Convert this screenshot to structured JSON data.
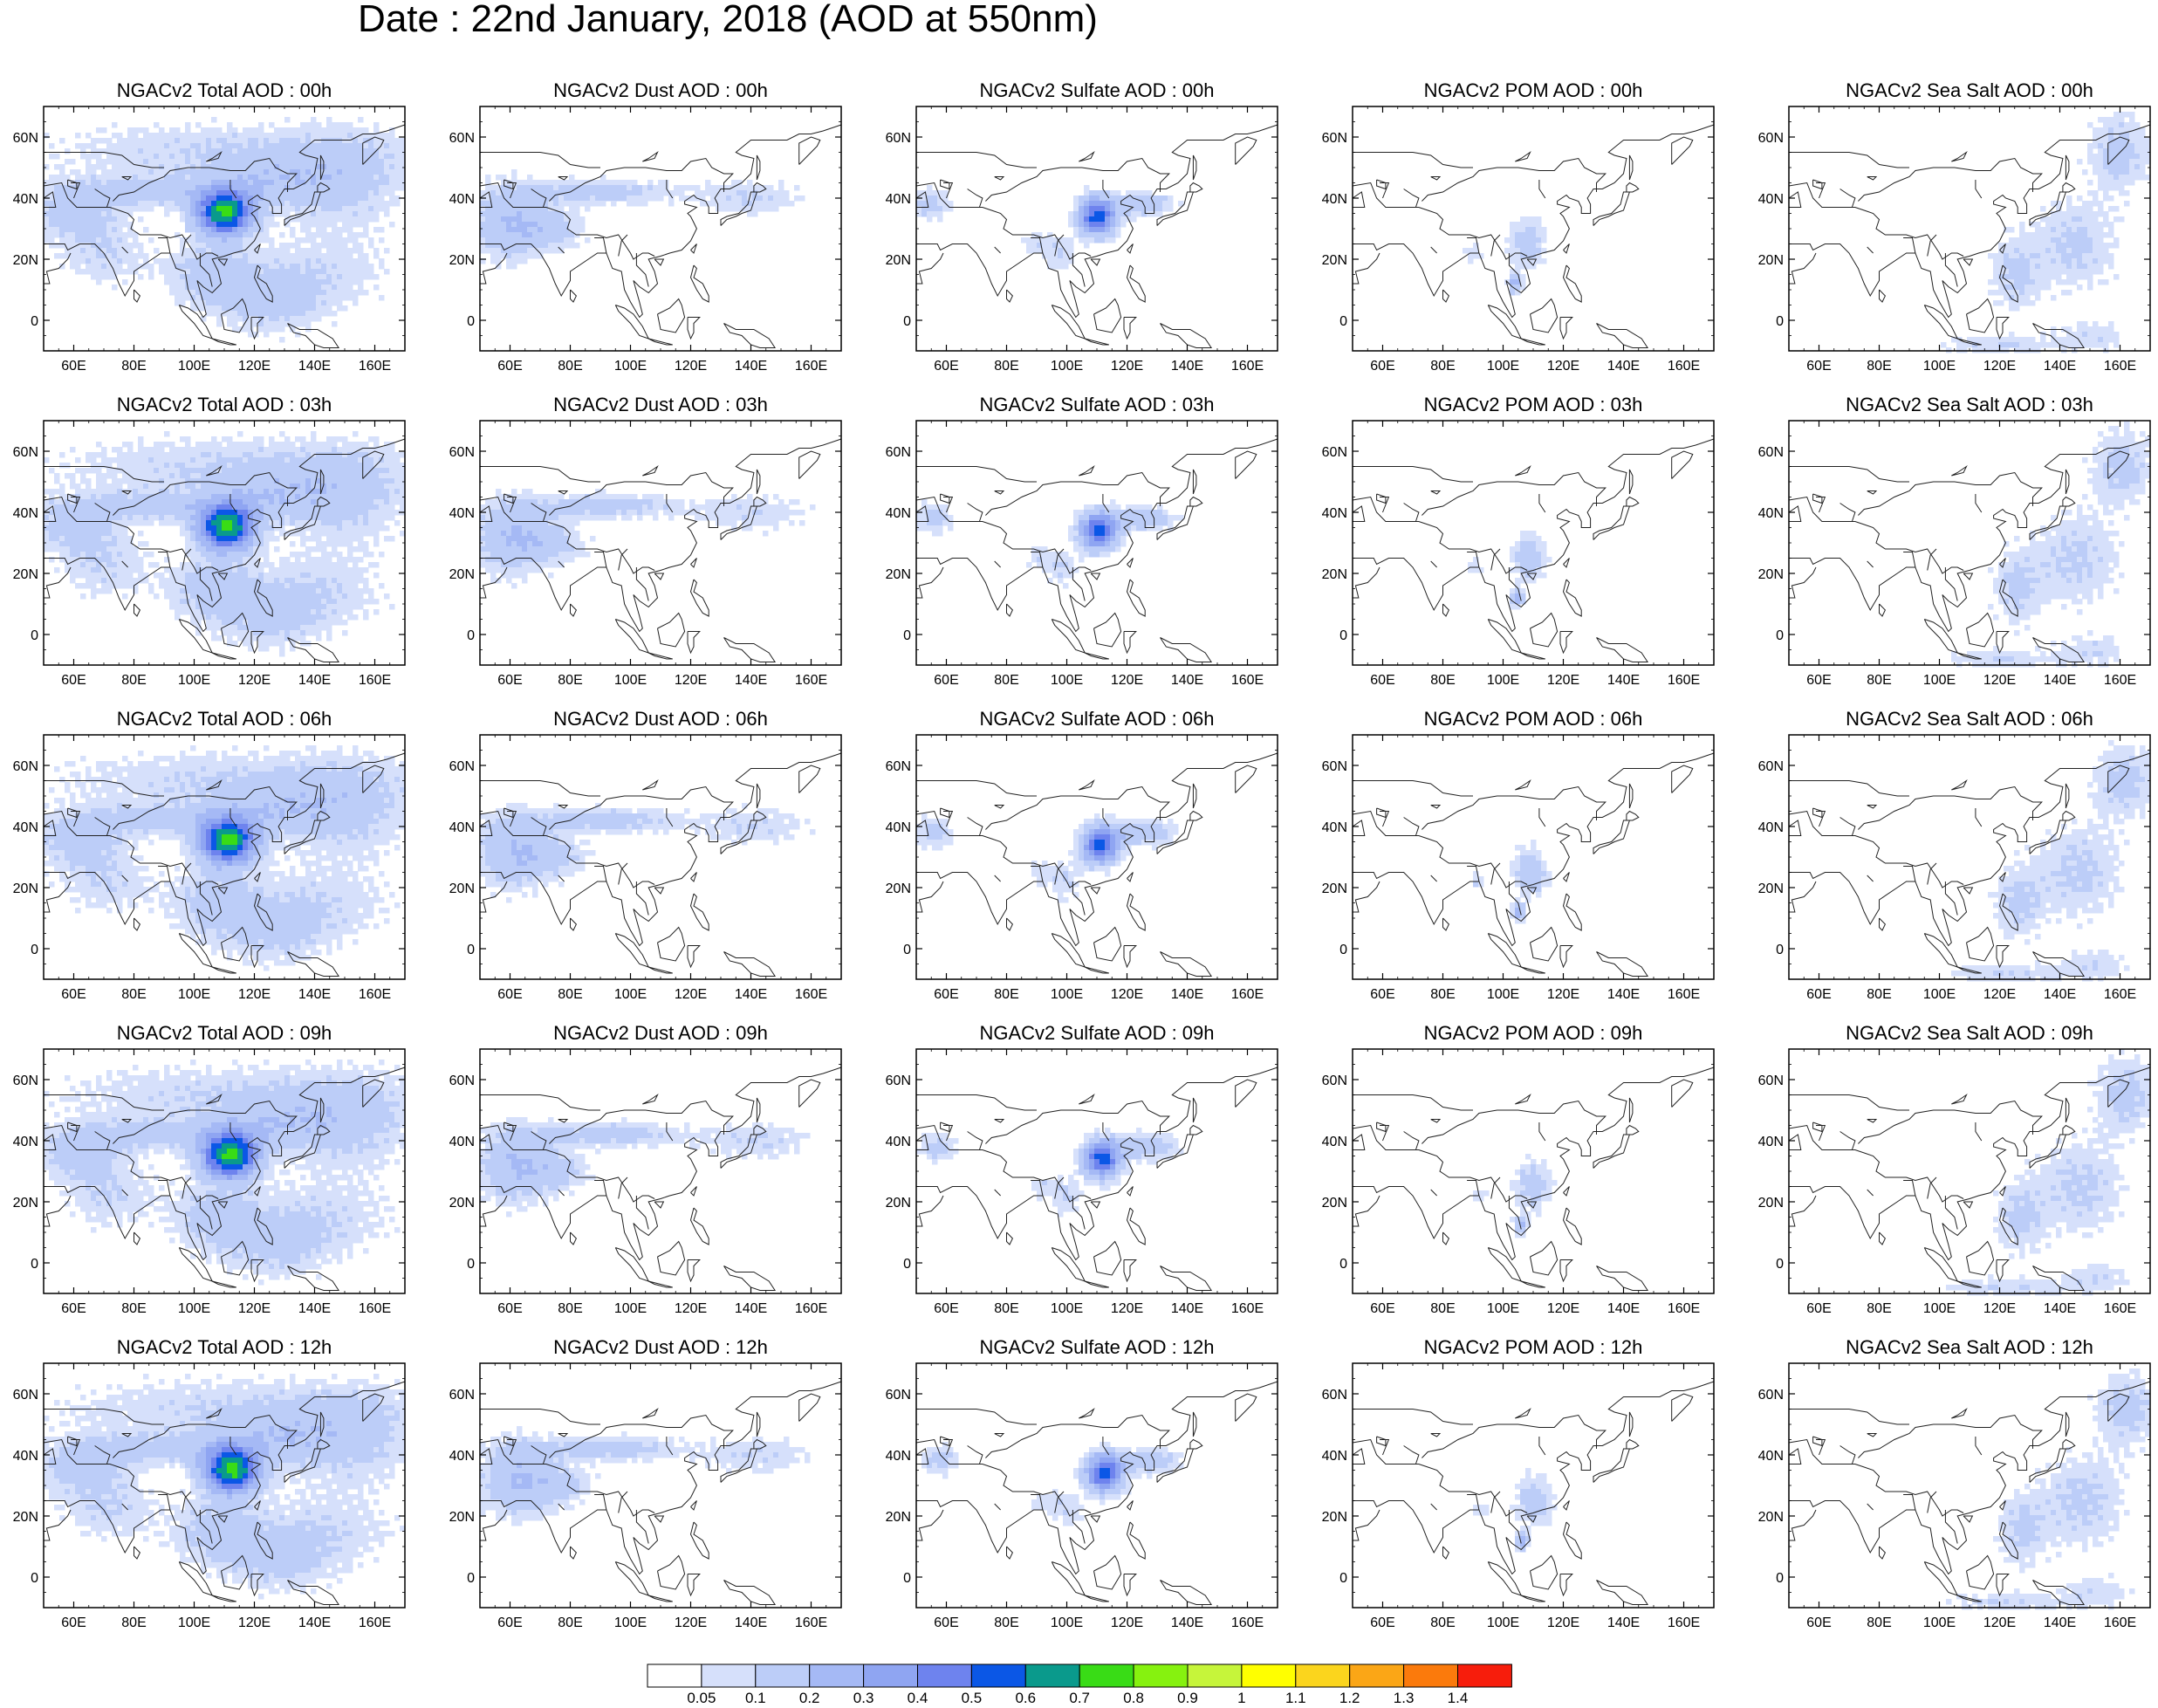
{
  "title": "Date : 22nd January, 2018 (AOD at 550nm)",
  "axes": {
    "lon_ticks": [
      "60E",
      "80E",
      "100E",
      "120E",
      "140E",
      "160E"
    ],
    "lat_ticks": [
      "60N",
      "40N",
      "20N",
      "0"
    ],
    "lon_tick_values": [
      60,
      80,
      100,
      120,
      140,
      160
    ],
    "lat_tick_values": [
      60,
      40,
      20,
      0
    ],
    "lon_range": [
      50,
      170
    ],
    "lat_range": [
      -10,
      70
    ]
  },
  "colorbar": {
    "labels": [
      "0.05",
      "0.1",
      "0.2",
      "0.3",
      "0.4",
      "0.5",
      "0.6",
      "0.7",
      "0.8",
      "0.9",
      "1",
      "1.1",
      "1.2",
      "1.3",
      "1.4"
    ],
    "colors": [
      "#ffffff",
      "#d6e0fb",
      "#bccdf8",
      "#a5b9f5",
      "#8fa5f2",
      "#6e83ee",
      "#0b57e6",
      "#0a9a8c",
      "#39dc16",
      "#86f20f",
      "#c6f53a",
      "#ffff00",
      "#fbd51d",
      "#fba616",
      "#fb7a0c",
      "#f71d0c"
    ]
  },
  "rows": [
    {
      "titles": [
        "NGACv2 Total AOD : 00h",
        "NGACv2 Dust AOD : 00h",
        "NGACv2 Sulfate AOD : 00h",
        "NGACv2 POM AOD : 00h",
        "NGACv2 Sea Salt AOD : 00h"
      ]
    },
    {
      "titles": [
        "NGACv2 Total AOD : 03h",
        "NGACv2 Dust AOD : 03h",
        "NGACv2 Sulfate AOD : 03h",
        "NGACv2 POM AOD : 03h",
        "NGACv2 Sea Salt AOD : 03h"
      ]
    },
    {
      "titles": [
        "NGACv2 Total AOD : 06h",
        "NGACv2 Dust AOD : 06h",
        "NGACv2 Sulfate AOD : 06h",
        "NGACv2 POM AOD : 06h",
        "NGACv2 Sea Salt AOD : 06h"
      ]
    },
    {
      "titles": [
        "NGACv2 Total AOD : 09h",
        "NGACv2 Dust AOD : 09h",
        "NGACv2 Sulfate AOD : 09h",
        "NGACv2 POM AOD : 09h",
        "NGACv2 Sea Salt  AOD : 09h"
      ]
    },
    {
      "titles": [
        "NGACv2 Total AOD  : 12h",
        "NGACv2 Dust AOD : 12h",
        "NGACv2 Sulfate AOD : 12h",
        "NGACv2 POM  AOD : 12h",
        "NGACv2 Sea Salt  AOD : 12h"
      ]
    }
  ]
}
